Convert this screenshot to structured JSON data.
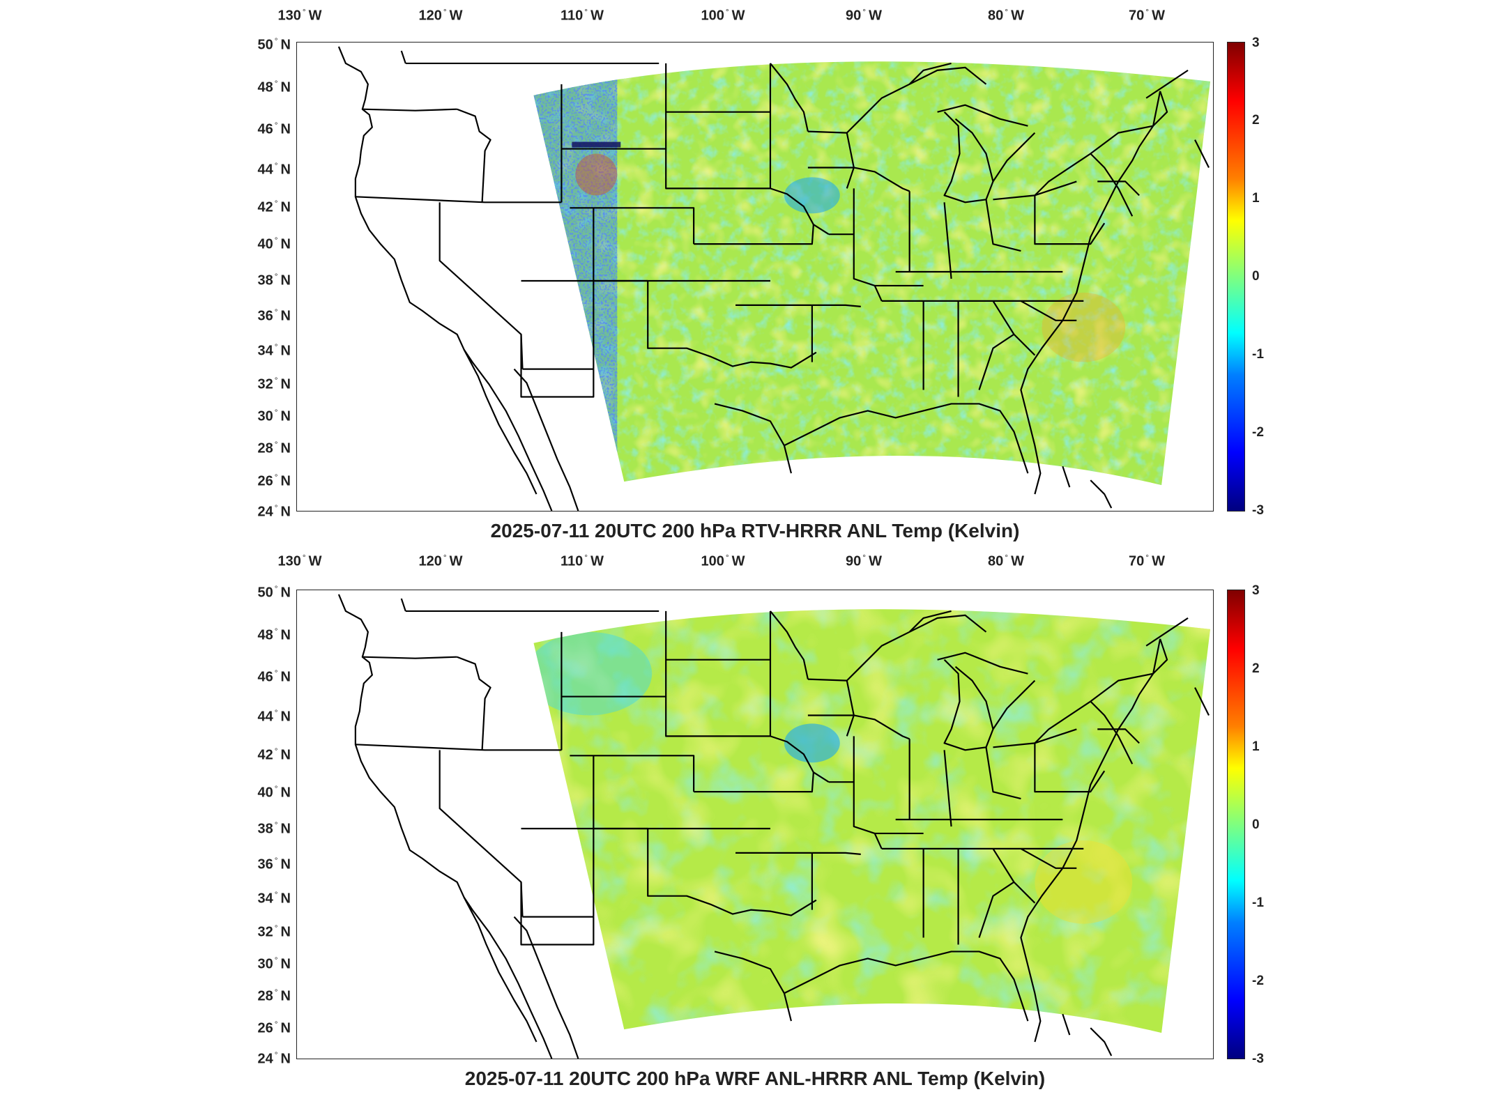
{
  "panels": [
    {
      "id": "rtv",
      "title": "2025-07-11 20UTC 200 hPa RTV-HRRR ANL Temp (Kelvin)",
      "lon_labels": [
        "130",
        "120",
        "110",
        "100",
        "90",
        "80",
        "70"
      ],
      "lon_suffix": "W",
      "lat_labels": [
        "50",
        "48",
        "46",
        "44",
        "42",
        "40",
        "38",
        "36",
        "34",
        "32",
        "30",
        "28",
        "26",
        "24"
      ],
      "lat_suffix": "N",
      "colorbar_ticks": [
        "3",
        "2",
        "1",
        "0",
        "-1",
        "-2",
        "-3"
      ],
      "colormap": "jet",
      "colorbar_range": [
        -3,
        3
      ]
    },
    {
      "id": "wrf",
      "title": "2025-07-11 20UTC 200 hPa WRF ANL-HRRR ANL Temp (Kelvin)",
      "lon_labels": [
        "130",
        "120",
        "110",
        "100",
        "90",
        "80",
        "70"
      ],
      "lon_suffix": "W",
      "lat_labels": [
        "50",
        "48",
        "46",
        "44",
        "42",
        "40",
        "38",
        "36",
        "34",
        "32",
        "30",
        "28",
        "26",
        "24"
      ],
      "lat_suffix": "N",
      "colorbar_ticks": [
        "3",
        "2",
        "1",
        "0",
        "-1",
        "-2",
        "-3"
      ],
      "colormap": "jet",
      "colorbar_range": [
        -3,
        3
      ]
    }
  ],
  "colors": {
    "field_base": "#a9e84f",
    "field_cool": "#3fd7e8",
    "field_warm": "#e6e83c",
    "field_cold_patch": "#1f4fe0",
    "boundary": "#000000"
  }
}
